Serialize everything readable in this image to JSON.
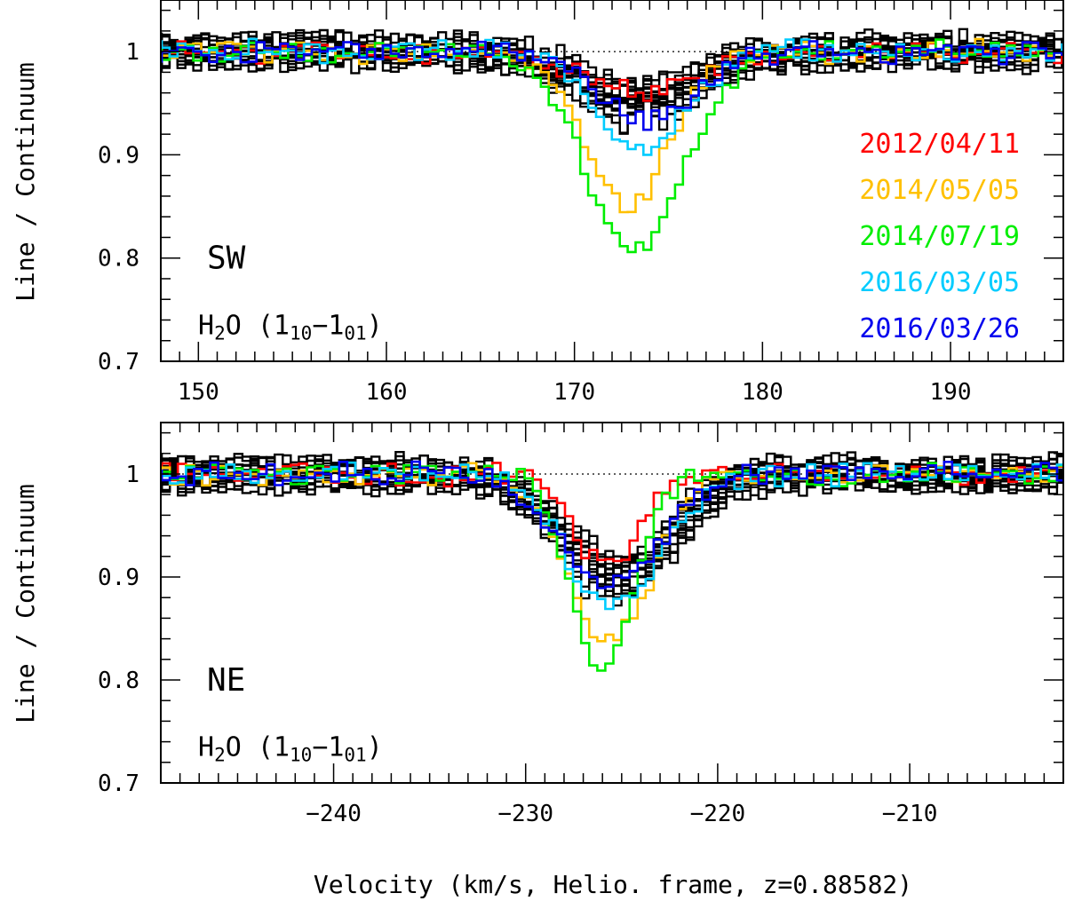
{
  "figure": {
    "ylabel": "Line / Continuum",
    "xlabel": "Velocity (km/s, Helio. frame, z=0.88582)"
  },
  "chart_data": [
    {
      "type": "line",
      "panel": "SW",
      "tag": "SW",
      "line_label": {
        "species": "H",
        "sub1": "2",
        "mid": "O (1",
        "sub2": "10",
        "dash": "−1",
        "sub3": "01",
        "end": ")"
      },
      "xlim": [
        148,
        196
      ],
      "ylim": [
        0.7,
        1.05
      ],
      "xticks": [
        150,
        160,
        170,
        180,
        190
      ],
      "yticks": [
        0.7,
        0.8,
        0.9,
        1
      ],
      "ytick_labels": [
        "0.7",
        "0.8",
        "0.9",
        "1"
      ],
      "continuum": 1,
      "legend_placement": "right",
      "series": [
        {
          "name": "2012/04/11",
          "color": "#ff0000",
          "center": 173.5,
          "depth": 0.038,
          "width": 3.2,
          "seed": 11
        },
        {
          "name": "2014/05/05",
          "color": "#ffc000",
          "center": 172.8,
          "depth": 0.15,
          "width": 2.2,
          "seed": 12
        },
        {
          "name": "2014/07/19",
          "color": "#00ee00",
          "center": 173.2,
          "depth": 0.188,
          "width": 2.6,
          "seed": 13
        },
        {
          "name": "2016/03/05",
          "color": "#00ccff",
          "center": 173.6,
          "depth": 0.09,
          "width": 2.4,
          "seed": 14
        },
        {
          "name": "2016/03/26",
          "color": "#0000ee",
          "center": 173.8,
          "depth": 0.065,
          "width": 2.6,
          "seed": 15
        }
      ],
      "background_profile": {
        "count": 14,
        "center": 173.5,
        "depth_range": [
          0.035,
          0.065
        ],
        "width": 3.0,
        "color": "#000000"
      }
    },
    {
      "type": "line",
      "panel": "NE",
      "tag": "NE",
      "line_label": {
        "species": "H",
        "sub1": "2",
        "mid": "O (1",
        "sub2": "10",
        "dash": "−1",
        "sub3": "01",
        "end": ")"
      },
      "xlim": [
        -249,
        -202
      ],
      "ylim": [
        0.7,
        1.05
      ],
      "xticks": [
        -240,
        -230,
        -220,
        -210
      ],
      "xtick_labels": [
        "−240",
        "−230",
        "−220",
        "−210"
      ],
      "yticks": [
        0.7,
        0.8,
        0.9,
        1
      ],
      "ytick_labels": [
        "0.7",
        "0.8",
        "0.9",
        "1"
      ],
      "continuum": 1,
      "series": [
        {
          "name": "2012/04/11",
          "color": "#ff0000",
          "center": -225.8,
          "depth": 0.09,
          "width": 1.6,
          "seed": 21
        },
        {
          "name": "2014/05/05",
          "color": "#ffc000",
          "center": -225.6,
          "depth": 0.16,
          "width": 2.2,
          "seed": 22
        },
        {
          "name": "2014/07/19",
          "color": "#00ee00",
          "center": -226.0,
          "depth": 0.19,
          "width": 1.6,
          "seed": 23
        },
        {
          "name": "2016/03/05",
          "color": "#00ccff",
          "center": -225.4,
          "depth": 0.13,
          "width": 2.4,
          "seed": 24
        },
        {
          "name": "2016/03/26",
          "color": "#0000ee",
          "center": -225.6,
          "depth": 0.105,
          "width": 2.6,
          "seed": 25
        }
      ],
      "background_profile": {
        "count": 14,
        "center": -225.2,
        "depth_range": [
          0.085,
          0.115
        ],
        "width": 2.8,
        "color": "#000000"
      }
    }
  ]
}
